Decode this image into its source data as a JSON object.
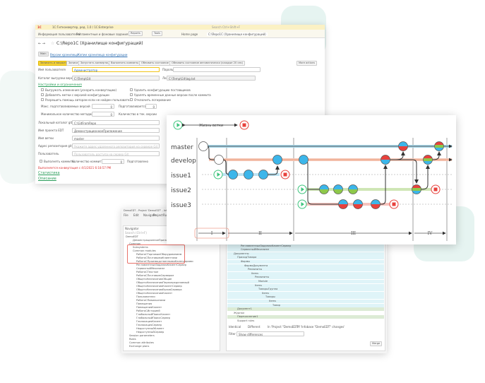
{
  "window1": {
    "app_title": "1С:Гитконвертер, ред. 1.0 / 1С:Enterprise",
    "search_placeholder": "Search Ctrl+Shift+F",
    "menu": [
      "Информация пользователей",
      "Регламентные и фоновые задания",
      "Reports",
      "Tools"
    ],
    "tabs": [
      {
        "label": "Home page"
      },
      {
        "label": "C:\\Repo1C (Хранилище конфигураций)"
      }
    ],
    "page_title": "C:\\Repo1C (Хранилище конфигураций)",
    "subtabs": [
      "Main",
      "Версии хранилища",
      "Копии хранилища конфигурации"
    ],
    "toolbar": [
      "Записать и закрыть",
      "Записать",
      "Запустить конвертацию",
      "Выполнить коммиты",
      "Обновить состояние",
      "Обновить состояние автоматически (каждые 20 сек)",
      "More actions"
    ],
    "fields": {
      "user_label": "Имя пользователя",
      "user_value": "Администратор",
      "password_label": "Пароль",
      "export_dir_label": "Каталог выгрузки версий",
      "export_dir_value": "C:\\Temp\\Git",
      "log_label": "Лог",
      "log_value": "C:\\Temp\\Git\\log.txt",
      "settings_link": "Настройки и ограничения",
      "opt1": "Выгружать изменения (ускорить конвертацию)",
      "opt2": "Удалить конфигурацию поставщиков",
      "opt3": "Добавлять метки с версией конфигурации",
      "opt4": "Удалять временные данные версии после коммита",
      "opt5": "Разрешить помощь авторам если не найден пользователь",
      "opt6": "Отключить логирование",
      "max_versions_label": "Макс. подготавливаемых версий",
      "max_versions_value": "0",
      "preparing_label": "Подготавливается",
      "preparing_value": "0",
      "min_meta_label": "Минимальное количество метаданных",
      "min_meta_value": "0",
      "count_label": "Количество в тек. версии",
      "local_dir_label": "Локальный каталог git",
      "local_dir_value": "C:\\GitFromRepo",
      "edt_label": "Имя проекта EDT",
      "edt_value": "ДемонстрационноеПриложение",
      "branch_label": "Имя ветки",
      "branch_value": "master",
      "repo_label": "Адрес репозитория git",
      "repo_placeholder": "Укажите адрес удаленного репозитория на сервере Git",
      "git_user_label": "Пользователь",
      "git_user_placeholder": "Пользователь доступа на сервер Git",
      "commit_label": "Выполнять коммиты",
      "commit_count_label": "Количество коммитов",
      "commit_count_value": "0",
      "prepare_label": "Подготовлено",
      "status_text": "Выполняется конвертация с 4/1/2021 6:18:57 PM",
      "stats_link": "Статистика",
      "desc_link": "Описание"
    }
  },
  "diagram": {
    "legend_label": "Жизнь ветки",
    "branches": [
      "master",
      "develop",
      "issue1",
      "issue2",
      "issue3"
    ],
    "phases": [
      "I",
      "II",
      "III",
      "IV"
    ],
    "colors": {
      "blue": "#3cb6ea",
      "green": "#8dc84b",
      "red": "#e8413c",
      "start": "#3cc47c",
      "end": "#e8413c"
    }
  },
  "window2": {
    "title": "DemoEDT - Project 'DemoEDT' - Infobase 'DemoEDT' changes - 1С:Enterprise Development Tools",
    "menu": [
      "File",
      "Edit",
      "Navigate",
      "Project",
      "Run",
      "Search",
      "Window",
      "Help"
    ],
    "navigator_title": "Navigator",
    "search_placeholder": "Search (Ctrl+F)",
    "tree": [
      "DemoEDT",
      "ДемонстрационноеПриложение",
      "Common",
      "Subsystems",
      "Common modules",
      "РаботаСТорговымОборудованием",
      "РаботаСПочтовымиКлиентами",
      "РаботаСПроизводственнымиКалендарями",
      "РегламентныеЗаданияКлиентСервер",
      "СервисныйМеханизм",
      "РаботаСТекстом",
      "РаботаСПочтовымСервером",
      "ОбщегоНазначенияОбщие",
      "ОбщегоНазначенияПереопределяемый",
      "ОбщегоНазначенияКлиентСервер",
      "ОбщегоНазначенияВызовСервера",
      "ОбщегоНазначенияКлиент",
      "Пользователи",
      "РаботаСПавильонами",
      "Помещения",
      "ПомещенияКлиент",
      "РаботаСИсторией",
      "ГлобальныйПоискКлиент",
      "ГлобальныйПоискСервер",
      "ГеолокацияКлиент",
      "ГеолокацияСервер",
      "НедоступныйКлиент",
      "НедоступныйСервер",
      "Session parameters",
      "Roles",
      "Common attributes",
      "Exchange plans"
    ],
    "compare_rows": [
      "РаботаСПроизводственнымиКалендарями",
      "РегламентныеЗаданияКлиентСервер",
      "СервисныйМеханизм",
      "Документы",
      "ПриходТовара",
      "Формы",
      "ФормаДокумента",
      "Реквизиты",
      "Items",
      "Реквизиты",
      "Module",
      "Items",
      "ТоварыГруппа",
      "Items",
      "Товары",
      "Items",
      "Товар",
      "Документ1",
      "Журнал",
      "Перечисление1",
      "Support rules"
    ],
    "col_headers": [
      "Project 'DemoEDT'",
      "Infobase 'DemoEDT'",
      "Merge rule and ac..."
    ],
    "status_legend": [
      "Identical",
      "Different",
      "In 'Project \"DemoEDT\"'",
      "In 'Infobase \"DemoEDT\" changes'"
    ],
    "filter_label": "Filter",
    "filter_value": "Show differences",
    "merge_button": "Merge"
  }
}
